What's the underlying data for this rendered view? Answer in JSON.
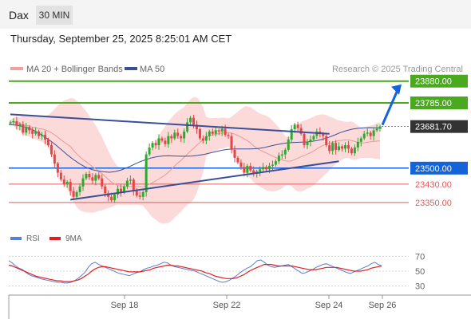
{
  "header": {
    "symbol": "Dax",
    "timeframe": "30 MIN",
    "timestamp": "Thursday, September 25, 2025 8:25:01 AM CET"
  },
  "legend": {
    "ma20_bb": "MA 20 + Bollinger Bands",
    "ma50": "MA 50",
    "credit": "Research © 2025 Trading Central"
  },
  "rsi_legend": {
    "rsi": "RSI",
    "ma9": "9MA"
  },
  "colors": {
    "candle_up": "#2ea82e",
    "candle_down": "#e64545",
    "bollinger_fill": "#fbd4d4",
    "ma20": "#e89a9a",
    "ma50": "#3b4f99",
    "resistance": "#4aa91e",
    "support": "#1463d9",
    "sub_support": "#e05a5a",
    "trendline": "#3b4f99",
    "rsi": "#5a7fd6",
    "rsi_ma": "#e02020",
    "price_label": "#333333"
  },
  "chart_data": [
    {
      "type": "candlestick",
      "title": "",
      "x_ticks": [
        "Sep 18",
        "Sep 22",
        "Sep 24",
        "Sep 26"
      ],
      "y_range": [
        23245,
        23900
      ],
      "current_price": 23681.7,
      "levels": [
        {
          "value": 23880.0,
          "label": "23880.00",
          "kind": "resistance"
        },
        {
          "value": 23785.0,
          "label": "23785.00",
          "kind": "resistance"
        },
        {
          "value": 23681.7,
          "label": "23681.70",
          "kind": "current"
        },
        {
          "value": 23500.0,
          "label": "23500.00",
          "kind": "support"
        },
        {
          "value": 23430.0,
          "label": "23430.00",
          "kind": "sub_support"
        },
        {
          "value": 23350.0,
          "label": "23350.00",
          "kind": "sub_support"
        }
      ],
      "close_series": [
        23700,
        23705,
        23685,
        23692,
        23655,
        23680,
        23665,
        23650,
        23660,
        23640,
        23645,
        23625,
        23600,
        23560,
        23520,
        23480,
        23450,
        23430,
        23440,
        23400,
        23375,
        23395,
        23420,
        23455,
        23475,
        23460,
        23445,
        23470,
        23455,
        23420,
        23390,
        23375,
        23360,
        23385,
        23410,
        23395,
        23420,
        23445,
        23450,
        23400,
        23380,
        23375,
        23395,
        23560,
        23590,
        23610,
        23600,
        23630,
        23620,
        23605,
        23640,
        23630,
        23655,
        23640,
        23630,
        23660,
        23700,
        23720,
        23690,
        23670,
        23630,
        23620,
        23640,
        23660,
        23650,
        23665,
        23660,
        23672,
        23645,
        23640,
        23580,
        23545,
        23525,
        23505,
        23480,
        23510,
        23490,
        23475,
        23485,
        23495,
        23505,
        23495,
        23510,
        23515,
        23530,
        23555,
        23560,
        23580,
        23625,
        23670,
        23690,
        23675,
        23650,
        23600,
        23615,
        23625,
        23640,
        23660,
        23650,
        23640,
        23600,
        23575,
        23610,
        23580,
        23595,
        23585,
        23600,
        23585,
        23565,
        23590,
        23615,
        23630,
        23650,
        23655,
        23640,
        23665,
        23672,
        23682
      ],
      "ma50_series": [
        23690,
        23688,
        23684,
        23678,
        23668,
        23654,
        23638,
        23620,
        23600,
        23578,
        23556,
        23536,
        23518,
        23504,
        23494,
        23488,
        23484,
        23482,
        23485,
        23492,
        23502,
        23514,
        23526,
        23536,
        23544,
        23550,
        23553,
        23554,
        23553,
        23552,
        23552,
        23553,
        23556,
        23560,
        23566,
        23572,
        23578,
        23582,
        23584,
        23584,
        23584,
        23584,
        23585,
        23589,
        23595,
        23601,
        23606,
        23610,
        23612,
        23613,
        23614,
        23616,
        23620,
        23626,
        23634,
        23644,
        23655,
        23663,
        23670,
        23674,
        23676,
        23677,
        23676,
        23675
      ],
      "trendlines": [
        {
          "from": [
            0,
            23735
          ],
          "to": [
            101,
            23650
          ]
        },
        {
          "from": [
            19,
            23362
          ],
          "to": [
            104,
            23530
          ]
        }
      ],
      "projection_target": 23880.0
    },
    {
      "type": "line",
      "title": "",
      "series": [
        {
          "name": "RSI",
          "values": [
            64,
            61,
            57,
            54,
            52,
            48,
            45,
            43,
            42,
            40,
            39,
            38,
            37,
            36,
            35,
            35,
            34,
            34,
            35,
            37,
            40,
            44,
            48,
            55,
            60,
            62,
            59,
            57,
            55,
            53,
            51,
            49,
            47,
            46,
            45,
            44,
            46,
            48,
            49,
            52,
            54,
            55,
            57,
            58,
            60,
            62,
            61,
            58,
            56,
            55,
            54,
            53,
            52,
            51,
            50,
            48,
            46,
            44,
            42,
            40,
            38,
            36,
            35,
            36,
            38,
            41,
            44,
            48,
            51,
            54,
            56,
            60,
            64,
            65,
            62,
            58,
            56,
            55,
            56,
            57,
            58,
            59,
            56,
            53,
            50,
            47,
            48,
            50,
            52,
            55,
            57,
            59,
            60,
            58,
            56,
            54,
            52,
            50,
            48,
            47,
            49,
            51,
            53,
            55,
            57,
            60,
            62,
            59,
            57
          ]
        },
        {
          "name": "9MA",
          "values": [
            58,
            57,
            55,
            53,
            51,
            49,
            47,
            45,
            43,
            42,
            41,
            40,
            39,
            38,
            37,
            37,
            36,
            36,
            36,
            37,
            38,
            40,
            43,
            46,
            50,
            53,
            55,
            56,
            56,
            55,
            54,
            53,
            52,
            51,
            50,
            49,
            49,
            49,
            49,
            50,
            51,
            52,
            54,
            55,
            56,
            57,
            58,
            58,
            57,
            57,
            56,
            55,
            54,
            53,
            52,
            51,
            50,
            48,
            47,
            45,
            43,
            42,
            41,
            40,
            40,
            40,
            41,
            43,
            45,
            48,
            51,
            53,
            55,
            57,
            59,
            59,
            59,
            58,
            57,
            57,
            57,
            57,
            57,
            56,
            55,
            54,
            53,
            52,
            52,
            52,
            53,
            54,
            55,
            55,
            55,
            55,
            54,
            53,
            52,
            51,
            50,
            50,
            50,
            51,
            52,
            54,
            55,
            56,
            57
          ]
        }
      ],
      "ylim": [
        20,
        80
      ],
      "y_ticks": [
        70,
        50,
        30
      ],
      "x_ticks": [
        "Sep 18",
        "Sep 22",
        "Sep 24",
        "Sep 26"
      ]
    }
  ]
}
